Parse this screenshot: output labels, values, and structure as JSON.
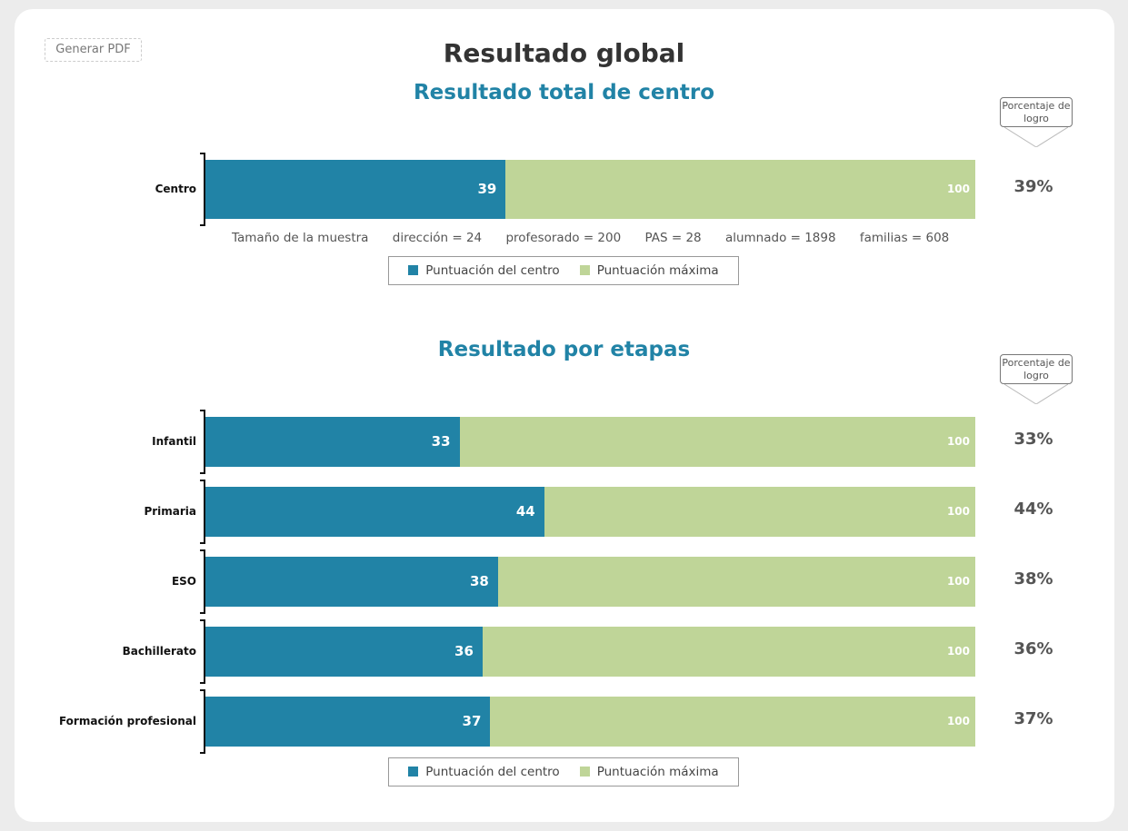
{
  "header": {
    "pdf_button": "Generar PDF",
    "title": "Resultado global"
  },
  "colors": {
    "centro": "#2183a6",
    "maxima": "#bfd598"
  },
  "pct_header": "Porcentaje de logro",
  "sample": {
    "label": "Tamaño de la muestra",
    "items": [
      "dirección = 24",
      "profesorado = 200",
      "PAS = 28",
      "alumnado = 1898",
      "familias = 608"
    ]
  },
  "legend": {
    "centro": "Puntuación del centro",
    "maxima": "Puntuación máxima"
  },
  "chart_data": [
    {
      "type": "bar",
      "orientation": "horizontal",
      "stacked": "overlay",
      "title": "Resultado total de centro",
      "categories": [
        "Centro"
      ],
      "series": [
        {
          "name": "Puntuación del centro",
          "values": [
            39
          ]
        },
        {
          "name": "Puntuación máxima",
          "values": [
            100
          ]
        }
      ],
      "percent_labels": [
        "39%"
      ],
      "xlim": [
        0,
        100
      ]
    },
    {
      "type": "bar",
      "orientation": "horizontal",
      "stacked": "overlay",
      "title": "Resultado por etapas",
      "categories": [
        "Infantil",
        "Primaria",
        "ESO",
        "Bachillerato",
        "Formación profesional"
      ],
      "series": [
        {
          "name": "Puntuación del centro",
          "values": [
            33,
            44,
            38,
            36,
            37
          ]
        },
        {
          "name": "Puntuación máxima",
          "values": [
            100,
            100,
            100,
            100,
            100
          ]
        }
      ],
      "percent_labels": [
        "33%",
        "44%",
        "38%",
        "36%",
        "37%"
      ],
      "xlim": [
        0,
        100
      ]
    }
  ]
}
